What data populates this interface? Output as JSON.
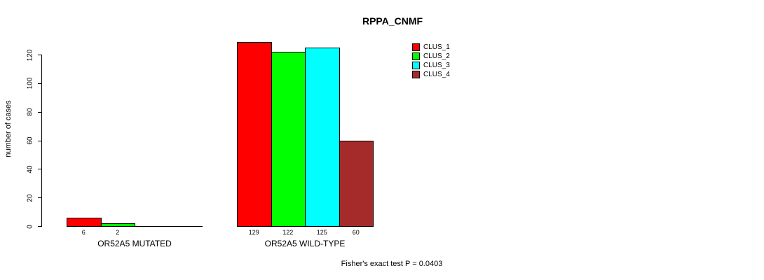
{
  "chart_data": {
    "type": "bar",
    "title": "RPPA_CNMF",
    "ylabel": "number of cases",
    "xlabel": "",
    "ylim": [
      0,
      120
    ],
    "yticks": [
      0,
      20,
      40,
      60,
      80,
      100,
      120
    ],
    "grid": false,
    "legend_position": "top-right",
    "categories": [
      "OR52A5 MUTATED",
      "OR52A5 WILD-TYPE"
    ],
    "series": [
      {
        "name": "CLUS_1",
        "color": "#ff0000",
        "values": [
          6,
          129
        ]
      },
      {
        "name": "CLUS_2",
        "color": "#00ff00",
        "values": [
          2,
          122
        ]
      },
      {
        "name": "CLUS_3",
        "color": "#00ffff",
        "values": [
          0,
          125
        ]
      },
      {
        "name": "CLUS_4",
        "color": "#a52a2a",
        "values": [
          0,
          60
        ]
      }
    ],
    "annotation": "Fisher's exact test P = 0.0403",
    "axis_color": "#000000"
  }
}
